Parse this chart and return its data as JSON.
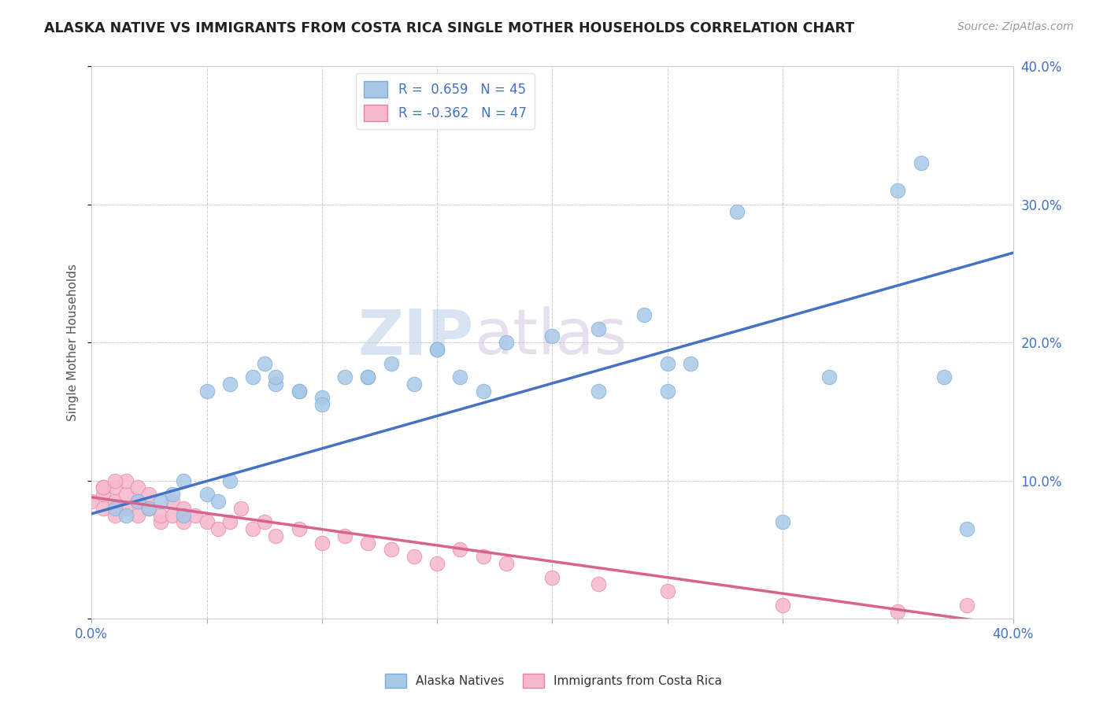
{
  "title": "ALASKA NATIVE VS IMMIGRANTS FROM COSTA RICA SINGLE MOTHER HOUSEHOLDS CORRELATION CHART",
  "source": "Source: ZipAtlas.com",
  "ylabel": "Single Mother Households",
  "xlim": [
    0.0,
    0.4
  ],
  "ylim": [
    0.0,
    0.4
  ],
  "R_blue": 0.659,
  "N_blue": 45,
  "R_pink": -0.362,
  "N_pink": 47,
  "blue_fill": "#a8c8e8",
  "pink_fill": "#f5b8cc",
  "blue_edge": "#7aadd4",
  "pink_edge": "#e8849e",
  "blue_line": "#4472c4",
  "pink_line": "#d9638a",
  "legend_color": "#4472c4",
  "tick_color": "#4472c4",
  "watermark_zip_color": "#c8d8ec",
  "watermark_atlas_color": "#d0c8e0",
  "background": "#ffffff",
  "grid_color": "#cccccc",
  "blue_x": [
    0.01,
    0.015,
    0.02,
    0.025,
    0.03,
    0.035,
    0.04,
    0.04,
    0.05,
    0.055,
    0.06,
    0.07,
    0.075,
    0.08,
    0.09,
    0.1,
    0.11,
    0.12,
    0.13,
    0.14,
    0.15,
    0.16,
    0.17,
    0.18,
    0.2,
    0.22,
    0.24,
    0.25,
    0.26,
    0.28,
    0.3,
    0.32,
    0.35,
    0.36,
    0.37,
    0.38,
    0.22,
    0.25,
    0.05,
    0.06,
    0.08,
    0.09,
    0.1,
    0.12,
    0.15
  ],
  "blue_y": [
    0.08,
    0.075,
    0.085,
    0.08,
    0.085,
    0.09,
    0.1,
    0.075,
    0.09,
    0.085,
    0.17,
    0.175,
    0.185,
    0.17,
    0.165,
    0.16,
    0.175,
    0.175,
    0.185,
    0.17,
    0.195,
    0.175,
    0.165,
    0.2,
    0.205,
    0.21,
    0.22,
    0.165,
    0.185,
    0.295,
    0.07,
    0.175,
    0.31,
    0.33,
    0.175,
    0.065,
    0.165,
    0.185,
    0.165,
    0.1,
    0.175,
    0.165,
    0.155,
    0.175,
    0.195
  ],
  "pink_x": [
    0.0,
    0.005,
    0.005,
    0.005,
    0.01,
    0.01,
    0.01,
    0.015,
    0.015,
    0.015,
    0.02,
    0.02,
    0.02,
    0.025,
    0.025,
    0.03,
    0.03,
    0.035,
    0.035,
    0.04,
    0.04,
    0.045,
    0.05,
    0.055,
    0.06,
    0.065,
    0.07,
    0.075,
    0.08,
    0.09,
    0.1,
    0.11,
    0.12,
    0.13,
    0.14,
    0.15,
    0.16,
    0.17,
    0.18,
    0.2,
    0.22,
    0.25,
    0.3,
    0.35,
    0.38,
    0.005,
    0.01
  ],
  "pink_y": [
    0.085,
    0.08,
    0.09,
    0.095,
    0.075,
    0.085,
    0.095,
    0.08,
    0.09,
    0.1,
    0.075,
    0.085,
    0.095,
    0.08,
    0.09,
    0.07,
    0.075,
    0.085,
    0.075,
    0.08,
    0.07,
    0.075,
    0.07,
    0.065,
    0.07,
    0.08,
    0.065,
    0.07,
    0.06,
    0.065,
    0.055,
    0.06,
    0.055,
    0.05,
    0.045,
    0.04,
    0.05,
    0.045,
    0.04,
    0.03,
    0.025,
    0.02,
    0.01,
    0.005,
    0.01,
    0.095,
    0.1
  ],
  "blue_line_x0": 0.0,
  "blue_line_y0": 0.076,
  "blue_line_x1": 0.4,
  "blue_line_y1": 0.265,
  "pink_line_x0": 0.0,
  "pink_line_y0": 0.088,
  "pink_line_x1": 0.4,
  "pink_line_y1": -0.005
}
